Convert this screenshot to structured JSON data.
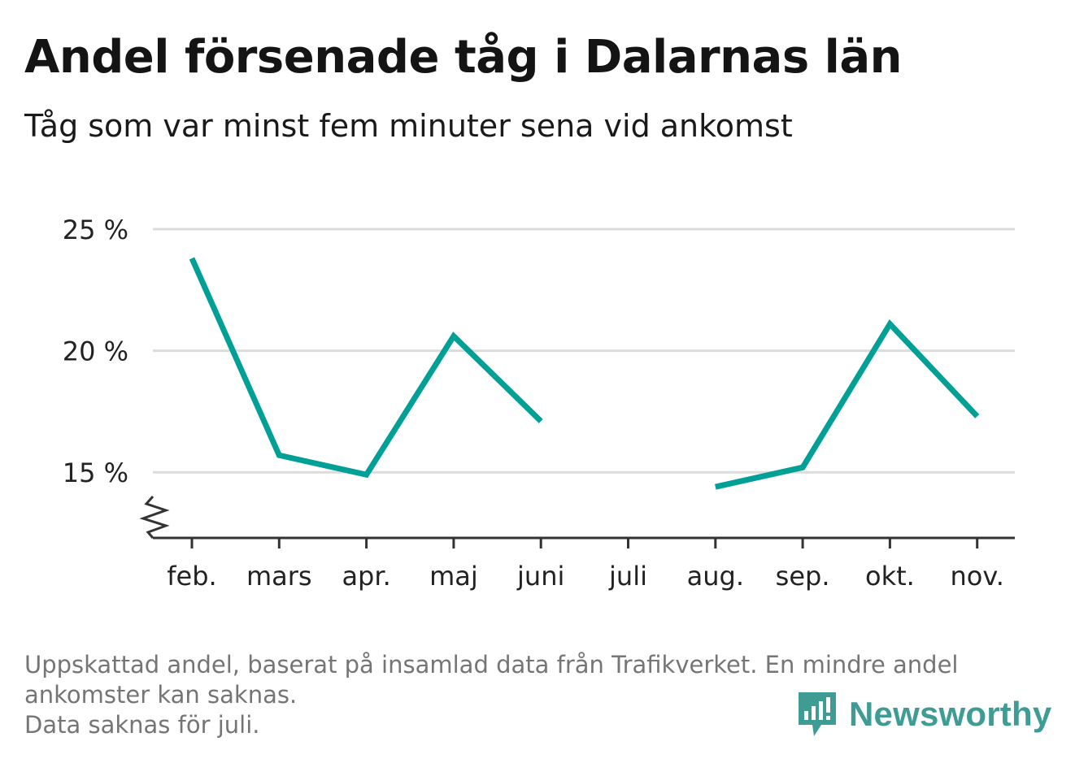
{
  "title": "Andel försenade tåg i Dalarnas län",
  "subtitle": "Tåg som var minst fem minuter sena vid ankomst",
  "footnote": {
    "line1": "Uppskattad andel, baserat på insamlad data från Trafikverket. En mindre andel ankomster kan saknas.",
    "line2": "Data saknas för juli."
  },
  "logo": {
    "text": "Newsworthy",
    "icon": "bar-chart-speech-bubble-icon",
    "color": "#3e9c95"
  },
  "colors": {
    "line": "#00a096",
    "grid": "#dcdcdc",
    "axis": "#333333",
    "text": "#222222"
  },
  "chart_data": {
    "type": "line",
    "categories": [
      "feb.",
      "mars",
      "apr.",
      "maj",
      "juni",
      "juli",
      "aug.",
      "sep.",
      "okt.",
      "nov."
    ],
    "series": [
      {
        "values": [
          23.8,
          15.7,
          14.9,
          20.6,
          17.1,
          null,
          14.4,
          15.2,
          21.1,
          17.3
        ]
      }
    ],
    "ylim": [
      12.3,
      25
    ],
    "yticks": [
      15,
      20,
      25
    ],
    "ytick_labels": [
      "15 %",
      "20 %",
      "25 %"
    ],
    "y_axis_break": true,
    "grid": "horizontal",
    "legend": "none"
  }
}
